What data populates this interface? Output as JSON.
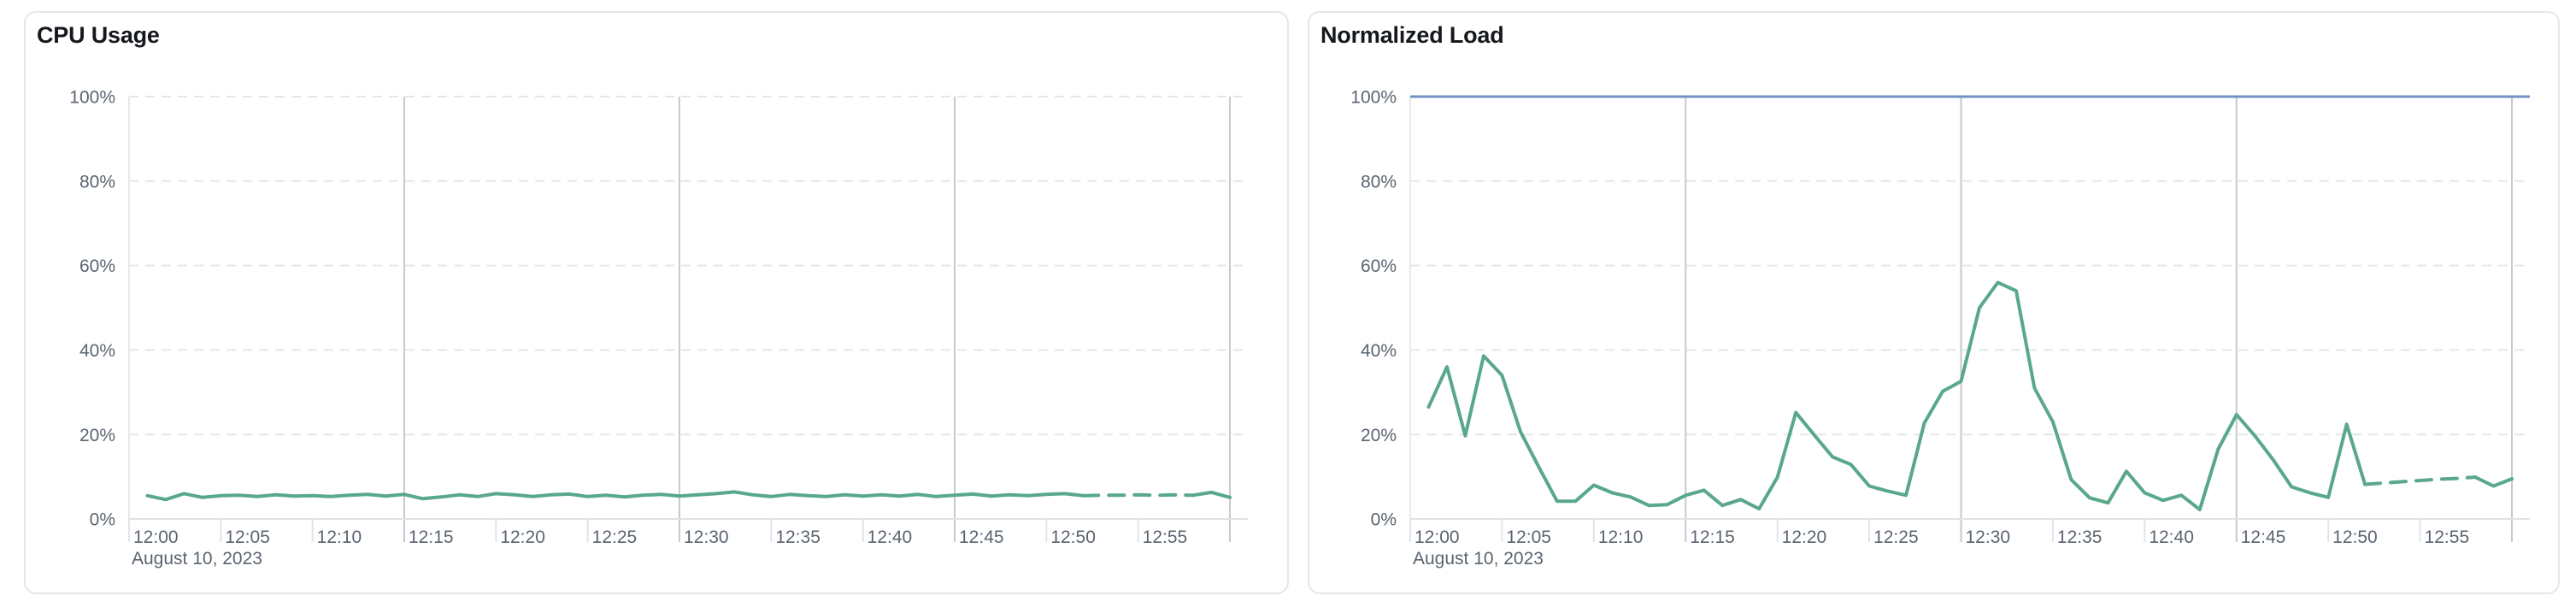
{
  "chart_data": [
    {
      "type": "line",
      "title": "CPU Usage",
      "date_label": "August 10, 2023",
      "ylim": [
        0,
        100
      ],
      "y_unit": "%",
      "grid": "horizontal-dashed, vertical-15min",
      "legend": "none",
      "y_ticks": [
        "100%",
        "80%",
        "60%",
        "40%",
        "20%",
        "0%"
      ],
      "x_ticks": [
        "12:00",
        "12:05",
        "12:10",
        "12:15",
        "12:20",
        "12:25",
        "12:30",
        "12:35",
        "12:40",
        "12:45",
        "12:50",
        "12:55"
      ],
      "x_start": "12:01",
      "x_end": "13:00",
      "x_interval_minutes": 1,
      "series": [
        {
          "color": "#58a889",
          "dashed_segment_x_range": [
            "12:52",
            "12:58"
          ],
          "values": [
            5.5,
            4.6,
            6.0,
            5.1,
            5.5,
            5.6,
            5.3,
            5.7,
            5.4,
            5.5,
            5.3,
            5.6,
            5.8,
            5.4,
            5.8,
            4.8,
            5.2,
            5.7,
            5.3,
            6.0,
            5.7,
            5.3,
            5.7,
            5.9,
            5.3,
            5.6,
            5.2,
            5.6,
            5.8,
            5.4,
            5.7,
            6.0,
            6.4,
            5.7,
            5.3,
            5.8,
            5.5,
            5.3,
            5.7,
            5.4,
            5.7,
            5.4,
            5.8,
            5.3,
            5.6,
            5.9,
            5.4,
            5.7,
            5.5,
            5.8,
            6.0,
            5.5,
            5.6,
            5.6,
            5.7,
            5.6,
            5.7,
            5.6,
            6.3,
            5.1
          ]
        }
      ]
    },
    {
      "type": "line",
      "title": "Normalized Load",
      "date_label": "August 10, 2023",
      "ylim": [
        0,
        100
      ],
      "y_unit": "%",
      "grid": "horizontal-dashed, vertical-15min",
      "legend": "none",
      "y_ticks": [
        "100%",
        "80%",
        "60%",
        "40%",
        "20%",
        "0%"
      ],
      "x_ticks": [
        "12:00",
        "12:05",
        "12:10",
        "12:15",
        "12:20",
        "12:25",
        "12:30",
        "12:35",
        "12:40",
        "12:45",
        "12:50",
        "12:55"
      ],
      "x_start": "12:01",
      "x_end": "13:00",
      "x_interval_minutes": 1,
      "limit_line": {
        "value": 100,
        "color": "#7193c3"
      },
      "series": [
        {
          "color": "#58a889",
          "dashed_segment_x_range": [
            "12:52",
            "12:58"
          ],
          "values": [
            26.5,
            36.0,
            19.7,
            38.6,
            34.0,
            20.7,
            12.3,
            4.2,
            4.2,
            8.0,
            6.2,
            5.2,
            3.2,
            3.4,
            5.6,
            6.8,
            3.2,
            4.6,
            2.4,
            9.9,
            25.2,
            19.9,
            14.7,
            12.9,
            7.8,
            6.6,
            5.6,
            22.7,
            30.2,
            32.6,
            50.0,
            56.0,
            54.0,
            31.0,
            23.0,
            9.3,
            5.0,
            3.8,
            11.3,
            6.2,
            4.4,
            5.6,
            2.2,
            16.5,
            24.7,
            19.7,
            14.0,
            7.6,
            6.2,
            5.1,
            22.4,
            8.2,
            8.5,
            8.8,
            9.1,
            9.4,
            9.6,
            9.9,
            7.8,
            9.5
          ]
        }
      ]
    }
  ]
}
